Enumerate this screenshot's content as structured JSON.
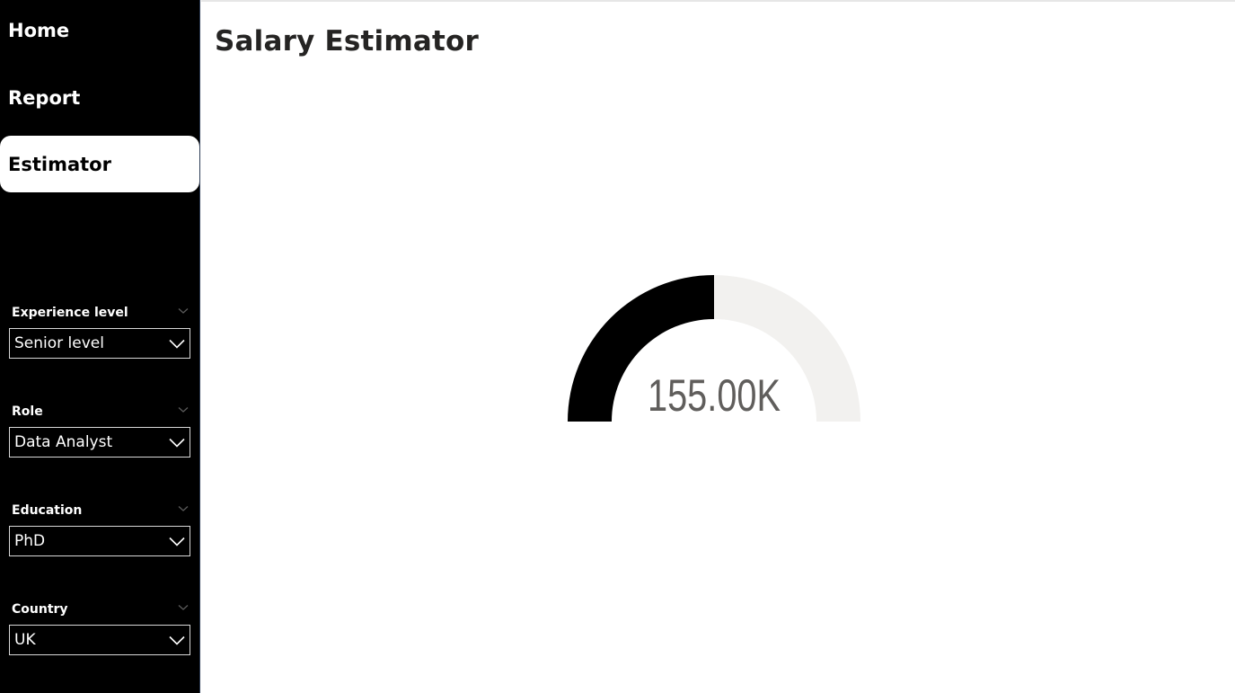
{
  "nav": {
    "items": [
      {
        "label": "Home",
        "active": false
      },
      {
        "label": "Report",
        "active": false
      },
      {
        "label": "Estimator",
        "active": true
      }
    ]
  },
  "filters": [
    {
      "title": "Experience level",
      "value": "Senior level"
    },
    {
      "title": "Role",
      "value": "Data Analyst"
    },
    {
      "title": "Education",
      "value": "PhD"
    },
    {
      "title": "Country",
      "value": "UK"
    }
  ],
  "page": {
    "title": "Salary Estimator"
  },
  "gauge": {
    "value_label": "155.00K",
    "fill_fraction": 0.5,
    "fill_color": "#000000",
    "track_color": "#f2f1ef",
    "label_color": "#605e5c"
  },
  "colors": {
    "sidebar_bg": "#000000",
    "active_nav_bg": "#ffffff",
    "title_color": "#252423"
  }
}
